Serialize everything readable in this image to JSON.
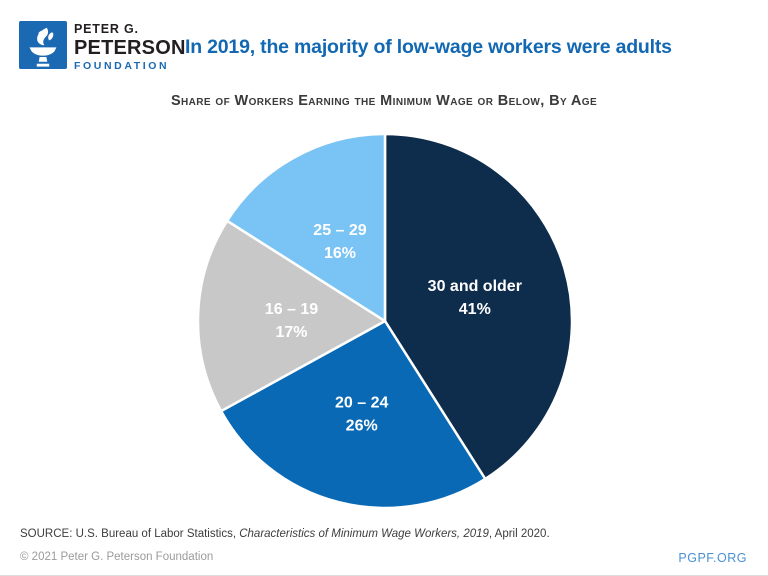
{
  "brand": {
    "line1": "PETER G.",
    "line2": "PETERSON",
    "line3": "FOUNDATION",
    "logo_blue": "#1b69b2"
  },
  "header": {
    "title": "In 2019, the majority of low-wage workers were adults",
    "title_color": "#1268b3"
  },
  "chart_data": {
    "type": "pie",
    "title": "Share of Workers Earning the Minimum Wage or Below, By Age",
    "start_angle_deg": 0,
    "direction": "clockwise",
    "label_color": "#ffffff",
    "slices": [
      {
        "label": "30 and older",
        "value": 41,
        "display": "41%",
        "color": "#0e2c4c"
      },
      {
        "label": "20 – 24",
        "value": 26,
        "display": "26%",
        "color": "#0a69b5"
      },
      {
        "label": "16 – 19",
        "value": 17,
        "display": "17%",
        "color": "#c8c8c8"
      },
      {
        "label": "25 – 29",
        "value": 16,
        "display": "16%",
        "color": "#7ac4f5"
      }
    ]
  },
  "footer": {
    "source_prefix": "SOURCE: U.S. Bureau of Labor Statistics, ",
    "source_italic": "Characteristics of Minimum Wage Workers, 2019",
    "source_suffix": ", April 2020.",
    "copyright": "© 2021 Peter G. Peterson Foundation",
    "site": "PGPF.ORG"
  }
}
